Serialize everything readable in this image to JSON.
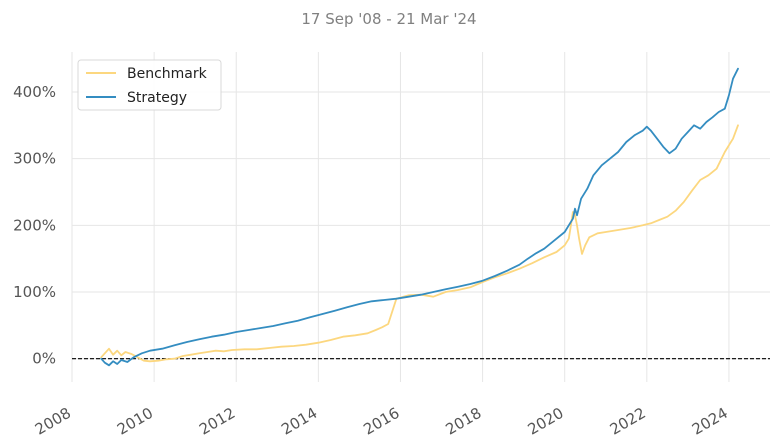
{
  "chart_data": {
    "type": "line",
    "subtitle": "17 Sep '08 - 21 Mar '24",
    "xlabel": "",
    "ylabel": "",
    "x_ticks": [
      "2008",
      "2010",
      "2012",
      "2014",
      "2016",
      "2018",
      "2020",
      "2022",
      "2024"
    ],
    "y_ticks": [
      "0%",
      "100%",
      "200%",
      "300%",
      "400%"
    ],
    "xlim": [
      2008.0,
      2025.0
    ],
    "ylim": [
      -35,
      460
    ],
    "grid": true,
    "legend": "top-left",
    "baseline": 0,
    "series": [
      {
        "name": "Benchmark",
        "color": "#fcd77f",
        "x": [
          2008.71,
          2008.8,
          2008.9,
          2009.0,
          2009.1,
          2009.2,
          2009.3,
          2009.45,
          2009.6,
          2009.75,
          2009.9,
          2010.1,
          2010.3,
          2010.5,
          2010.7,
          2010.9,
          2011.1,
          2011.3,
          2011.5,
          2011.7,
          2011.9,
          2012.2,
          2012.5,
          2012.8,
          2013.1,
          2013.4,
          2013.7,
          2014.0,
          2014.3,
          2014.6,
          2014.9,
          2015.2,
          2015.4,
          2015.55,
          2015.7,
          2015.9,
          2016.2,
          2016.5,
          2016.8,
          2017.1,
          2017.4,
          2017.7,
          2018.0,
          2018.3,
          2018.6,
          2018.9,
          2019.2,
          2019.5,
          2019.8,
          2020.0,
          2020.1,
          2020.15,
          2020.2,
          2020.25,
          2020.3,
          2020.35,
          2020.42,
          2020.5,
          2020.6,
          2020.8,
          2021.0,
          2021.3,
          2021.6,
          2021.9,
          2022.1,
          2022.3,
          2022.5,
          2022.7,
          2022.9,
          2023.1,
          2023.3,
          2023.5,
          2023.7,
          2023.9,
          2024.0,
          2024.1,
          2024.22
        ],
        "values": [
          2,
          8,
          15,
          6,
          12,
          5,
          10,
          7,
          2,
          -3,
          -4,
          -3,
          -1,
          0,
          4,
          6,
          8,
          10,
          12,
          11,
          13,
          14,
          14,
          16,
          18,
          19,
          21,
          24,
          28,
          33,
          35,
          38,
          43,
          47,
          52,
          90,
          95,
          96,
          93,
          100,
          103,
          107,
          115,
          122,
          128,
          135,
          143,
          152,
          160,
          170,
          180,
          200,
          220,
          215,
          200,
          180,
          157,
          170,
          182,
          188,
          190,
          193,
          196,
          200,
          203,
          208,
          213,
          222,
          235,
          252,
          268,
          275,
          285,
          310,
          320,
          330,
          350
        ]
      },
      {
        "name": "Strategy",
        "color": "#348dc1",
        "x": [
          2008.71,
          2008.8,
          2008.9,
          2009.0,
          2009.1,
          2009.2,
          2009.35,
          2009.5,
          2009.7,
          2009.9,
          2010.2,
          2010.5,
          2010.8,
          2011.1,
          2011.4,
          2011.7,
          2012.0,
          2012.3,
          2012.6,
          2012.9,
          2013.2,
          2013.5,
          2013.8,
          2014.1,
          2014.4,
          2014.7,
          2015.0,
          2015.3,
          2015.6,
          2015.9,
          2016.2,
          2016.5,
          2016.8,
          2017.1,
          2017.4,
          2017.7,
          2018.0,
          2018.3,
          2018.6,
          2018.9,
          2019.1,
          2019.3,
          2019.5,
          2019.8,
          2020.0,
          2020.1,
          2020.2,
          2020.25,
          2020.3,
          2020.4,
          2020.55,
          2020.7,
          2020.9,
          2021.1,
          2021.3,
          2021.5,
          2021.7,
          2021.9,
          2022.0,
          2022.1,
          2022.25,
          2022.4,
          2022.55,
          2022.7,
          2022.85,
          2023.0,
          2023.15,
          2023.3,
          2023.45,
          2023.6,
          2023.75,
          2023.9,
          2024.0,
          2024.1,
          2024.22
        ],
        "values": [
          0,
          -6,
          -10,
          -4,
          -8,
          -2,
          -5,
          2,
          8,
          12,
          15,
          20,
          25,
          29,
          33,
          36,
          40,
          43,
          46,
          49,
          53,
          57,
          62,
          67,
          72,
          77,
          82,
          86,
          88,
          90,
          93,
          96,
          100,
          104,
          108,
          112,
          117,
          124,
          132,
          141,
          150,
          158,
          165,
          180,
          190,
          200,
          210,
          225,
          215,
          240,
          255,
          275,
          290,
          300,
          310,
          325,
          335,
          342,
          348,
          342,
          330,
          318,
          308,
          315,
          330,
          340,
          350,
          345,
          355,
          362,
          370,
          375,
          395,
          420,
          435
        ]
      }
    ]
  }
}
